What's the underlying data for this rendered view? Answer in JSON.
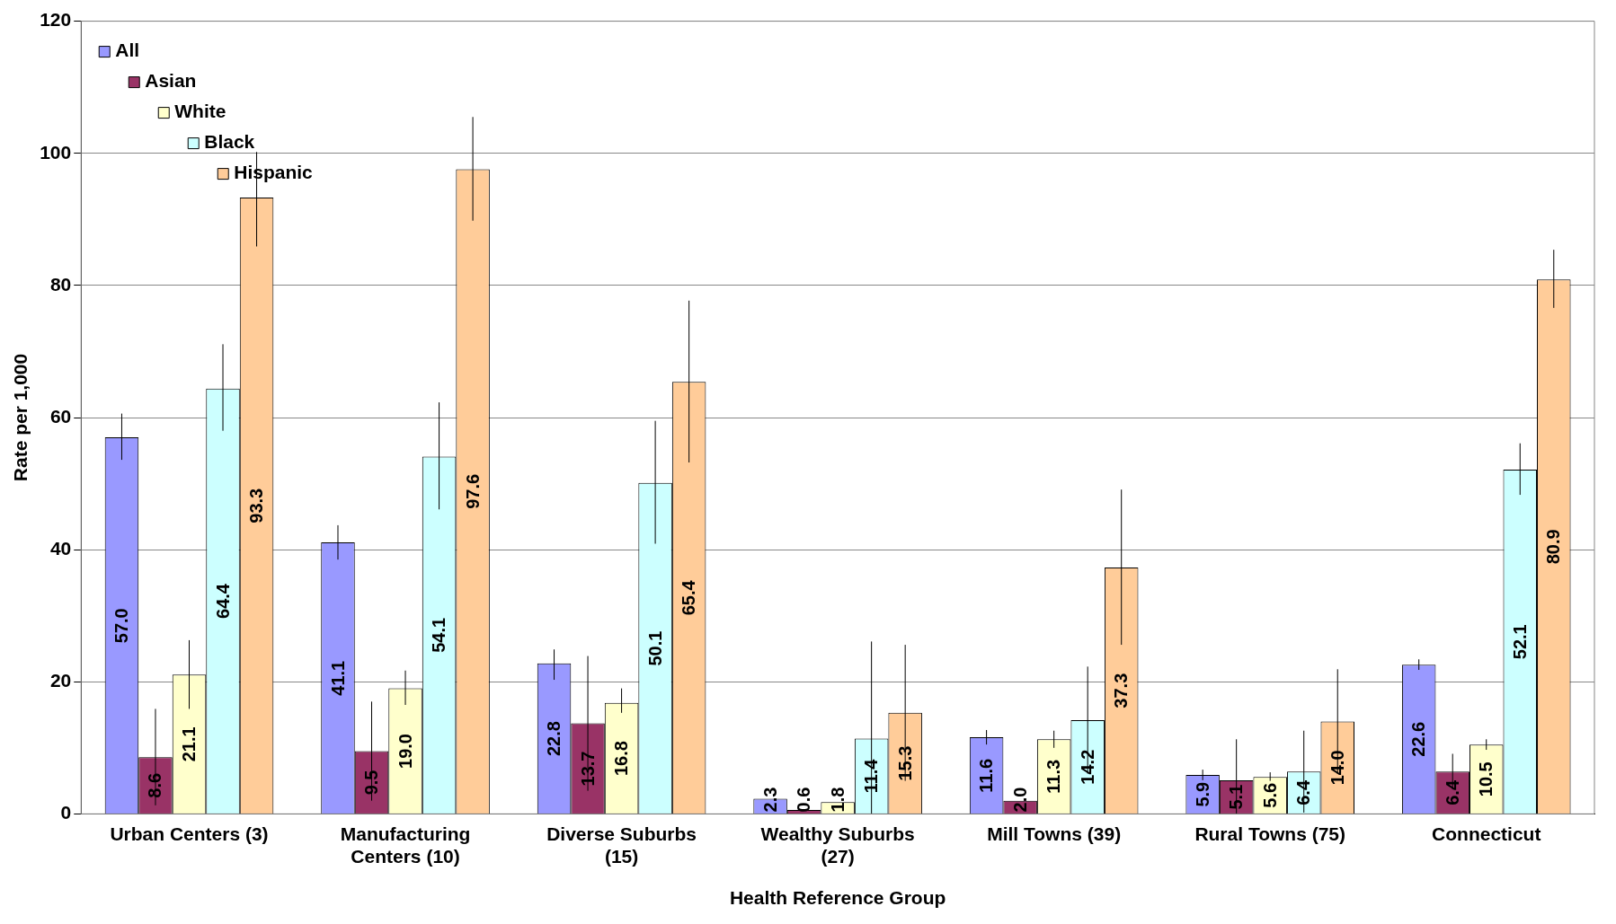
{
  "chart_data": {
    "type": "bar",
    "xlabel": "Health Reference Group",
    "ylabel": "Rate per 1,000",
    "categories": [
      "Urban Centers (3)",
      "Manufacturing Centers (10)",
      "Diverse Suburbs (15)",
      "Wealthy Suburbs (27)",
      "Mill Towns (39)",
      "Rural Towns (75)",
      "Connecticut"
    ],
    "series": [
      {
        "name": "All",
        "color": "#9999ff",
        "values": [
          57.0,
          41.1,
          22.8,
          2.3,
          11.6,
          5.9,
          22.6
        ],
        "errors": [
          [
            53.6,
            60.6
          ],
          [
            38.5,
            43.7
          ],
          [
            20.3,
            24.9
          ],
          null,
          [
            10.5,
            12.7
          ],
          [
            5.1,
            6.7
          ],
          [
            21.8,
            23.4
          ]
        ],
        "value_labels": [
          "57.0",
          "41.1",
          "22.8",
          "2.3",
          "11.6",
          "5.9",
          "22.6"
        ]
      },
      {
        "name": "Asian",
        "color": "#993366",
        "values": [
          8.6,
          9.5,
          13.7,
          0.6,
          2.0,
          5.1,
          6.4
        ],
        "errors": [
          [
            1.3,
            15.9
          ],
          [
            2.0,
            17.0
          ],
          [
            3.5,
            23.9
          ],
          null,
          null,
          [
            0,
            11.3
          ],
          [
            3.7,
            9.1
          ]
        ],
        "value_labels": [
          "8.6",
          "9.5",
          "13.7",
          "0.6",
          "2.0",
          "5.1",
          "6.4"
        ]
      },
      {
        "name": "White",
        "color": "#ffffcc",
        "values": [
          21.1,
          19.0,
          16.8,
          1.8,
          11.3,
          5.6,
          10.5
        ],
        "errors": [
          [
            15.9,
            26.3
          ],
          [
            16.5,
            21.7
          ],
          [
            15.3,
            19.0
          ],
          null,
          [
            10.0,
            12.6
          ],
          [
            5.0,
            6.3
          ],
          [
            9.7,
            11.3
          ]
        ],
        "value_labels": [
          "21.1",
          "19.0",
          "16.8",
          "1.8",
          "11.3",
          "5.6",
          "10.5"
        ]
      },
      {
        "name": "Black",
        "color": "#ccffff",
        "values": [
          64.4,
          54.1,
          50.1,
          11.4,
          14.2,
          6.4,
          52.1
        ],
        "errors": [
          [
            58.0,
            71.1
          ],
          [
            46.1,
            62.3
          ],
          [
            40.9,
            59.5
          ],
          [
            0,
            26.1
          ],
          [
            6.1,
            22.3
          ],
          [
            0.2,
            12.6
          ],
          [
            48.3,
            56.1
          ]
        ],
        "value_labels": [
          "64.4",
          "54.1",
          "50.1",
          "11.4",
          "14.2",
          "6.4",
          "52.1"
        ]
      },
      {
        "name": "Hispanic",
        "color": "#ffcc99",
        "values": [
          93.3,
          97.6,
          65.4,
          15.3,
          37.3,
          14.0,
          80.9
        ],
        "errors": [
          [
            85.9,
            100.2
          ],
          [
            89.8,
            105.5
          ],
          [
            53.2,
            77.7
          ],
          [
            5.0,
            25.6
          ],
          [
            25.6,
            49.1
          ],
          [
            6.1,
            21.9
          ],
          [
            76.6,
            85.4
          ]
        ],
        "value_labels": [
          "93.3",
          "97.6",
          "65.4",
          "15.3",
          "37.3",
          "14.0",
          "80.9"
        ]
      }
    ],
    "ylim": [
      0,
      120
    ],
    "yticks": [
      0,
      20,
      40,
      60,
      80,
      100,
      120
    ],
    "grid": "y",
    "legend": "top left"
  }
}
